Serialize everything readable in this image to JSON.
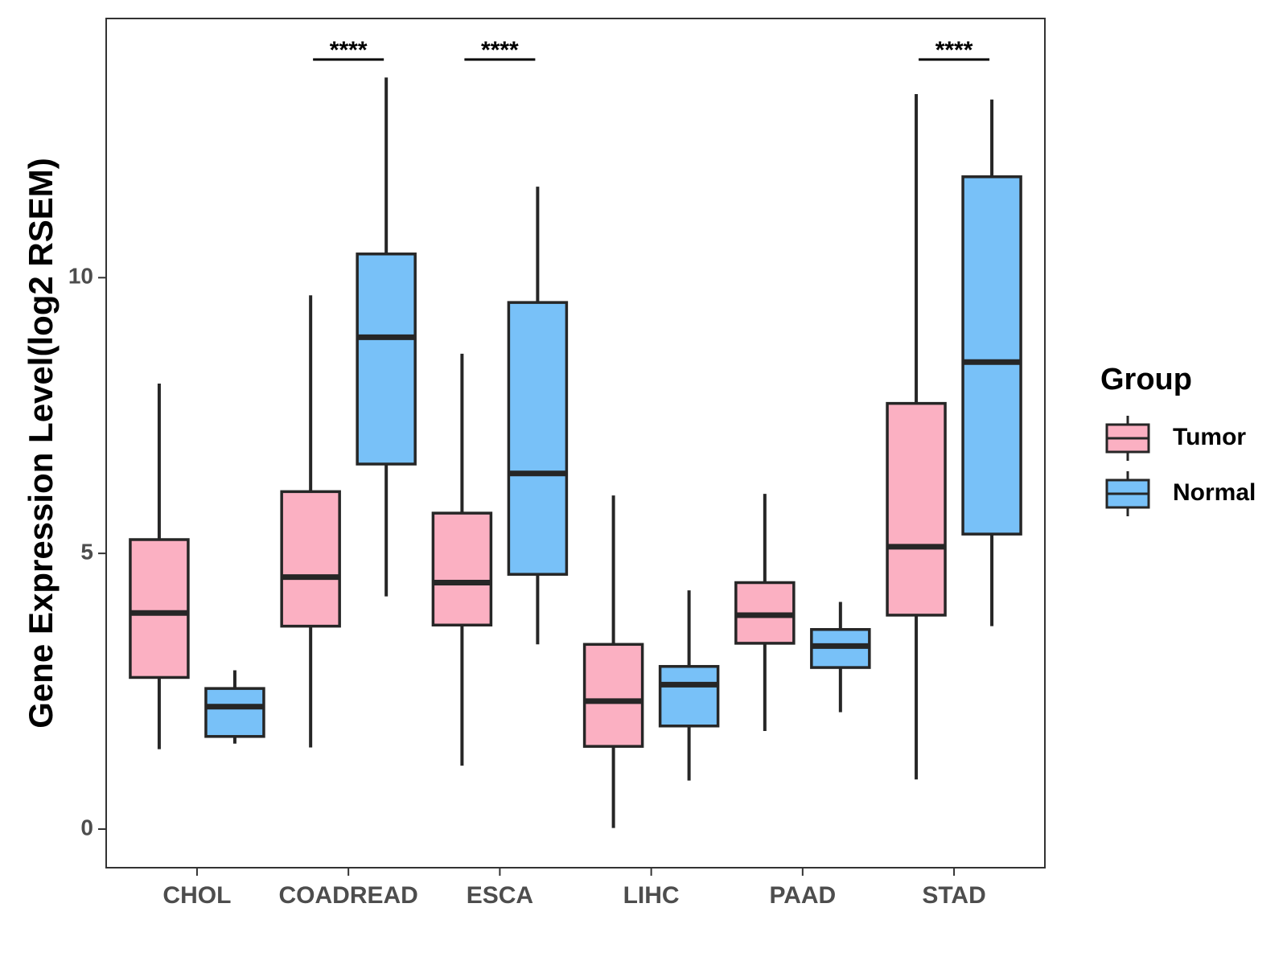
{
  "chart_data": {
    "type": "boxplot",
    "ylabel": "Gene Expression Level(log2 RSEM)",
    "xlabel": "",
    "ylim": [
      -0.7,
      14.7
    ],
    "yticks": [
      0,
      5,
      10
    ],
    "categories": [
      "CHOL",
      "COADREAD",
      "ESCA",
      "LIHC",
      "PAAD",
      "STAD"
    ],
    "legend": {
      "title": "Group",
      "position": "right",
      "entries": [
        {
          "name": "Tumor",
          "color": "#fbb0c2"
        },
        {
          "name": "Normal",
          "color": "#78c1f8"
        }
      ]
    },
    "series": [
      {
        "name": "Tumor",
        "color": "#fbb0c2",
        "boxes": [
          {
            "category": "CHOL",
            "min": 1.45,
            "q1": 2.75,
            "median": 3.92,
            "q3": 5.25,
            "max": 8.08
          },
          {
            "category": "COADREAD",
            "min": 1.48,
            "q1": 3.68,
            "median": 4.57,
            "q3": 6.12,
            "max": 9.68
          },
          {
            "category": "ESCA",
            "min": 1.15,
            "q1": 3.7,
            "median": 4.47,
            "q3": 5.73,
            "max": 8.62
          },
          {
            "category": "LIHC",
            "min": 0.02,
            "q1": 1.5,
            "median": 2.32,
            "q3": 3.35,
            "max": 6.05
          },
          {
            "category": "PAAD",
            "min": 1.78,
            "q1": 3.37,
            "median": 3.88,
            "q3": 4.47,
            "max": 6.08
          },
          {
            "category": "STAD",
            "min": 0.9,
            "q1": 3.88,
            "median": 5.12,
            "q3": 7.72,
            "max": 13.33
          }
        ]
      },
      {
        "name": "Normal",
        "color": "#78c1f8",
        "boxes": [
          {
            "category": "CHOL",
            "min": 1.55,
            "q1": 1.68,
            "median": 2.22,
            "q3": 2.55,
            "max": 2.88
          },
          {
            "category": "COADREAD",
            "min": 4.22,
            "q1": 6.62,
            "median": 8.92,
            "q3": 10.43,
            "max": 13.63
          },
          {
            "category": "ESCA",
            "min": 3.35,
            "q1": 4.62,
            "median": 6.45,
            "q3": 9.55,
            "max": 11.65
          },
          {
            "category": "LIHC",
            "min": 0.88,
            "q1": 1.87,
            "median": 2.62,
            "q3": 2.95,
            "max": 4.33
          },
          {
            "category": "PAAD",
            "min": 2.12,
            "q1": 2.93,
            "median": 3.32,
            "q3": 3.62,
            "max": 4.12
          },
          {
            "category": "STAD",
            "min": 3.68,
            "q1": 5.35,
            "median": 8.47,
            "q3": 11.83,
            "max": 13.23
          }
        ]
      }
    ],
    "annotations": [
      {
        "category": "COADREAD",
        "text": "****"
      },
      {
        "category": "ESCA",
        "text": "****"
      },
      {
        "category": "STAD",
        "text": "****"
      }
    ]
  }
}
